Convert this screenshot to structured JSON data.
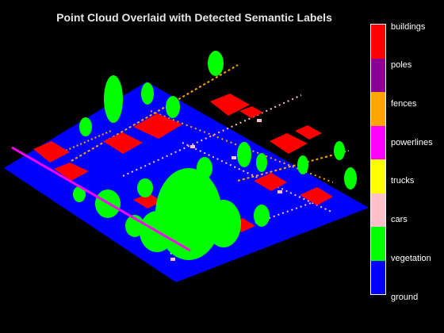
{
  "figure": {
    "title": "Point Cloud Overlaid with Detected Semantic Labels",
    "background": "#000000"
  },
  "legend": {
    "classes": [
      {
        "label": "ground",
        "color": "#0000ff"
      },
      {
        "label": "vegetation",
        "color": "#00ff00"
      },
      {
        "label": "cars",
        "color": "#ffc0cb"
      },
      {
        "label": "trucks",
        "color": "#ffff00"
      },
      {
        "label": "powerlines",
        "color": "#ff00ff"
      },
      {
        "label": "fences",
        "color": "#ffa500"
      },
      {
        "label": "poles",
        "color": "#8b0093"
      },
      {
        "label": "buildings",
        "color": "#ff0000"
      }
    ]
  }
}
